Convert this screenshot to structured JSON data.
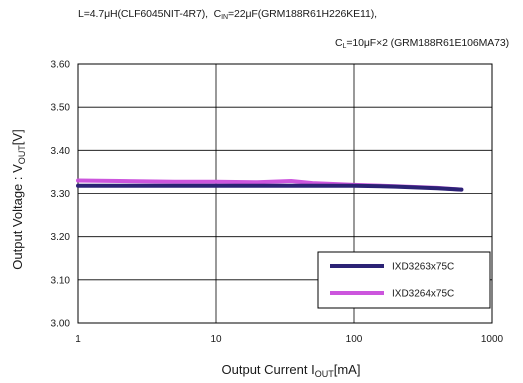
{
  "notes": {
    "inductor": "L=4.7μH(CLF6045NIT-4R7),",
    "cin_prefix": "C",
    "cin_sub": "IN",
    "cin_rest": "=22μF(GRM188R61H226KE11),",
    "cl_prefix": "C",
    "cl_sub": "L",
    "cl_rest": "=10μF×2 (GRM188R61E106MA73)"
  },
  "chart_data": {
    "type": "line",
    "xscale": "log",
    "xlim": [
      1,
      1000
    ],
    "ylim": [
      3.0,
      3.6
    ],
    "x_ticks": [
      1,
      10,
      100,
      1000
    ],
    "x_tick_labels": [
      "1",
      "10",
      "100",
      "1000"
    ],
    "y_ticks": [
      3.0,
      3.1,
      3.2,
      3.3,
      3.4,
      3.5,
      3.6
    ],
    "y_tick_labels": [
      "3.00",
      "3.10",
      "3.20",
      "3.30",
      "3.40",
      "3.50",
      "3.60"
    ],
    "xlabel": "Output Current I",
    "xlabel_sub": "OUT",
    "xlabel_unit": "[mA]",
    "ylabel": "Output Voltage : V",
    "ylabel_sub": "OUT",
    "ylabel_unit": "[V]",
    "grid": true,
    "legend_position": "bottom-right",
    "series": [
      {
        "name": "IXD3263x75C",
        "color": "#2b2275",
        "x": [
          1,
          2,
          5,
          10,
          20,
          50,
          100,
          200,
          400,
          600
        ],
        "y": [
          3.318,
          3.318,
          3.318,
          3.318,
          3.318,
          3.318,
          3.318,
          3.316,
          3.312,
          3.309
        ]
      },
      {
        "name": "IXD3264x75C",
        "color": "#cc55dd",
        "x": [
          1,
          2,
          5,
          10,
          20,
          35,
          50,
          100,
          200,
          400,
          600
        ],
        "y": [
          3.33,
          3.329,
          3.327,
          3.327,
          3.326,
          3.329,
          3.324,
          3.32,
          3.317,
          3.313,
          3.309
        ]
      }
    ]
  }
}
